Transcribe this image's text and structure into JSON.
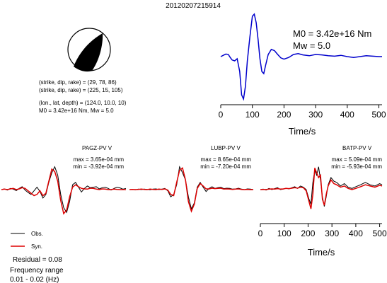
{
  "figure": {
    "title": "20120207215914",
    "focal_lines": [
      "(strike, dip, rake) = (29, 78, 86)",
      "(strike, dip, rake) = (225, 15, 105)",
      "(lon., lat, depth) = (124.0, 10.0, 10)"
    ],
    "summary_line": "M0 = 3.42e+16 Nm, Mw = 5.0",
    "stf_moment": "M0 = 3.42e+16 Nm",
    "stf_magnitude": "Mw = 5.0",
    "legend_obs": "Obs.",
    "legend_syn": "Syn.",
    "residual": "Residual = 0.08",
    "freq_title": "Frequency range",
    "freq_range": "0.01 - 0.02 (Hz)",
    "colors": {
      "obs": "#000000",
      "syn": "#dd0000",
      "stf": "#0000cc"
    }
  },
  "chart_data": [
    {
      "type": "line",
      "title": "",
      "xlabel": "Time/s",
      "xlim": [
        0,
        510
      ],
      "xticks": [
        0,
        100,
        200,
        300,
        400,
        500
      ],
      "series": [
        {
          "x": [
            0,
            8,
            16,
            24,
            30,
            36,
            44,
            52,
            60,
            66,
            72,
            78,
            84,
            92,
            100,
            106,
            112,
            118,
            124,
            130,
            136,
            142,
            150,
            160,
            170,
            180,
            190,
            200,
            215,
            230,
            245,
            260,
            280,
            300,
            320,
            340,
            360,
            380,
            400,
            420,
            440,
            460,
            480,
            500,
            510
          ],
          "y": [
            0.0,
            0.03,
            0.06,
            0.05,
            -0.02,
            -0.08,
            -0.1,
            -0.05,
            -0.35,
            -0.9,
            -1.0,
            -0.7,
            -0.1,
            0.45,
            0.95,
            1.0,
            0.8,
            0.4,
            -0.05,
            -0.35,
            -0.4,
            -0.2,
            0.05,
            0.17,
            0.14,
            0.05,
            -0.03,
            -0.06,
            -0.02,
            0.05,
            0.07,
            0.04,
            0.02,
            0.05,
            0.04,
            0.02,
            0.01,
            0.03,
            0.0,
            -0.02,
            0.0,
            0.02,
            0.01,
            0.0,
            0.0
          ]
        }
      ]
    },
    {
      "type": "line",
      "title": "PAGZ-PV V",
      "annotation": [
        "max = 3.65e-04 mm",
        "min = -3.92e-04 mm"
      ],
      "series": [
        {
          "name": "Obs.",
          "y": [
            0,
            0.03,
            -0.02,
            0.05,
            0.02,
            -0.04,
            0.05,
            0.12,
            -0.02,
            -0.12,
            -0.2,
            -0.05,
            0.1,
            -0.08,
            -0.35,
            -0.2,
            0.3,
            0.7,
            0.95,
            0.6,
            -0.2,
            -0.75,
            -0.95,
            -0.5,
            0.2,
            0.3,
            0.1,
            -0.1,
            0.05,
            0.15,
            0.08,
            0.1,
            0.12,
            0.03,
            0.08,
            0.1,
            0.05,
            -0.02,
            0.05,
            0.1,
            0.07,
            0.02,
            0.05
          ]
        },
        {
          "name": "Syn.",
          "y": [
            0,
            0.02,
            0.0,
            0.03,
            0.05,
            0.0,
            0.03,
            0.08,
            0.05,
            -0.05,
            -0.15,
            -0.25,
            -0.2,
            -0.05,
            -0.25,
            -0.15,
            0.35,
            0.85,
            0.75,
            0.35,
            -0.45,
            -1.0,
            -0.85,
            -0.3,
            0.1,
            0.2,
            0.12,
            0.05,
            0.03,
            0.02,
            0.06,
            0.05,
            0.02,
            0.0,
            0.03,
            0.02,
            0.0,
            0.0,
            0.02,
            0.01,
            0.0,
            0.0,
            0.0
          ]
        }
      ]
    },
    {
      "type": "line",
      "title": "LUBP-PV V",
      "annotation": [
        "max = 8.65e-04 mm",
        "min = -7.20e-04 mm"
      ],
      "series": [
        {
          "name": "Obs.",
          "y": [
            0,
            0.01,
            -0.01,
            0.02,
            0.0,
            0.02,
            0.01,
            -0.01,
            0.02,
            0.03,
            0.0,
            0.02,
            0.05,
            -0.05,
            -0.3,
            -0.2,
            0.2,
            0.95,
            0.7,
            0.4,
            -0.3,
            -0.8,
            -0.55,
            0.1,
            0.3,
            0.1,
            -0.08,
            0.05,
            0.12,
            0.05,
            0.08,
            0.1,
            0.04,
            0.06,
            0.05,
            0.02,
            0.03,
            0.06,
            0.02,
            0.0,
            0.03,
            0.02,
            0.0
          ]
        },
        {
          "name": "Syn.",
          "y": [
            0,
            0.01,
            0.0,
            0.01,
            0.02,
            0.01,
            0.0,
            0.02,
            0.01,
            0.0,
            0.02,
            0.01,
            0.03,
            -0.02,
            -0.2,
            -0.25,
            0.3,
            0.8,
            0.9,
            0.4,
            -0.5,
            -0.9,
            -0.6,
            0.05,
            0.25,
            0.15,
            0.03,
            0.03,
            0.06,
            0.04,
            0.05,
            0.06,
            0.02,
            0.03,
            0.02,
            0.01,
            0.02,
            0.03,
            0.01,
            0.0,
            0.01,
            0.0,
            0.0
          ]
        }
      ]
    },
    {
      "type": "line",
      "title": "BATP-PV V",
      "annotation": [
        "max = 5.09e-04 mm",
        "min = -5.93e-04 mm"
      ],
      "xlabel": "Time/s",
      "xlim": [
        0,
        510
      ],
      "xticks": [
        0,
        100,
        200,
        300,
        400,
        500
      ],
      "series": [
        {
          "name": "Obs.",
          "x": [
            0,
            12,
            24,
            36,
            48,
            60,
            72,
            84,
            96,
            108,
            120,
            132,
            144,
            156,
            168,
            180,
            192,
            204,
            212,
            220,
            228,
            236,
            244,
            252,
            260,
            268,
            276,
            284,
            296,
            308,
            320,
            336,
            352,
            368,
            384,
            400,
            420,
            440,
            460,
            480,
            500,
            510
          ],
          "y": [
            0,
            0.02,
            -0.02,
            0.05,
            0.0,
            0.04,
            0.08,
            0.0,
            0.02,
            0.06,
            0.03,
            0.08,
            0.12,
            0.05,
            0.15,
            0.1,
            0.0,
            -0.4,
            -0.6,
            0.3,
            0.8,
            0.6,
            0.95,
            0.4,
            -0.3,
            -0.7,
            -0.3,
            0.2,
            0.5,
            0.35,
            0.3,
            0.15,
            0.25,
            0.1,
            0.05,
            0.12,
            0.2,
            0.3,
            0.2,
            0.15,
            0.25,
            0.2
          ]
        },
        {
          "name": "Syn.",
          "x": [
            0,
            12,
            24,
            36,
            48,
            60,
            72,
            84,
            96,
            108,
            120,
            132,
            144,
            156,
            168,
            180,
            192,
            204,
            212,
            220,
            228,
            236,
            244,
            252,
            260,
            268,
            276,
            284,
            296,
            308,
            320,
            336,
            352,
            368,
            384,
            400,
            420,
            440,
            460,
            480,
            500,
            510
          ],
          "y": [
            0,
            0.01,
            0.0,
            0.02,
            0.03,
            0.02,
            0.04,
            0.02,
            0.03,
            0.05,
            0.04,
            0.06,
            0.08,
            0.06,
            0.1,
            0.08,
            -0.05,
            -0.5,
            -0.8,
            -0.2,
            0.9,
            0.7,
            0.5,
            0.6,
            -0.4,
            -0.65,
            -0.2,
            0.15,
            0.4,
            0.25,
            0.2,
            0.1,
            0.15,
            0.05,
            0.0,
            0.05,
            0.12,
            0.2,
            0.15,
            0.1,
            0.18,
            0.15
          ]
        }
      ]
    }
  ]
}
